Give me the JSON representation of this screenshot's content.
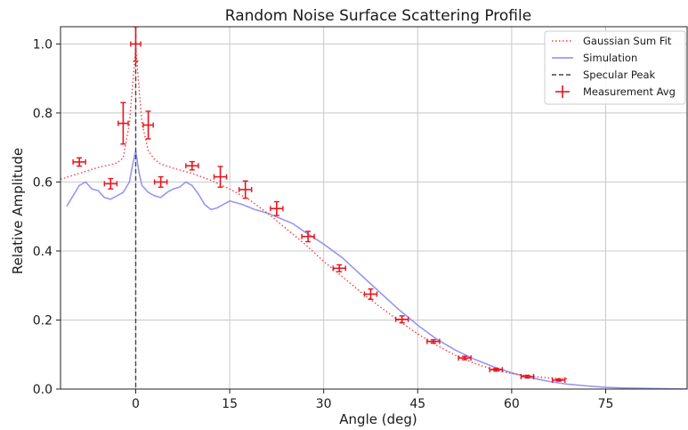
{
  "chart_data": {
    "type": "line",
    "title": "Random Noise Surface Scattering Profile",
    "xlabel": "Angle (deg)",
    "ylabel": "Relative Amplitude",
    "xlim": [
      -12,
      88
    ],
    "ylim": [
      0,
      1.05
    ],
    "xticks": [
      0,
      15,
      30,
      45,
      60,
      75
    ],
    "yticks": [
      0.0,
      0.2,
      0.4,
      0.6,
      0.8,
      1.0
    ],
    "xtick_labels": [
      "0",
      "15",
      "30",
      "45",
      "60",
      "75"
    ],
    "ytick_labels": [
      "0.0",
      "0.2",
      "0.4",
      "0.6",
      "0.8",
      "1.0"
    ],
    "grid": true,
    "legend_position": "top-right",
    "legend": [
      "Gaussian Sum Fit",
      "Simulation",
      "Specular Peak",
      "Measurement Avg"
    ],
    "colors": {
      "fit": "#ff3b3b",
      "simulation": "#8c8cf0",
      "specular": "#444444",
      "measurement": "#e8141e"
    },
    "specular_peak_x": 0,
    "series": [
      {
        "name": "Gaussian Sum Fit",
        "style": "dotted",
        "x": [
          -12,
          -9,
          -6,
          -4,
          -3,
          -2,
          -1,
          -0.5,
          0,
          0.5,
          1,
          2,
          3,
          4,
          6,
          9,
          12,
          15,
          18,
          21,
          24,
          27,
          30,
          33,
          36,
          39,
          42,
          45,
          48,
          51,
          54,
          57,
          60,
          63,
          66,
          69
        ],
        "y": [
          0.608,
          0.625,
          0.642,
          0.65,
          0.655,
          0.67,
          0.77,
          0.88,
          0.99,
          0.88,
          0.77,
          0.69,
          0.665,
          0.652,
          0.64,
          0.625,
          0.605,
          0.58,
          0.55,
          0.51,
          0.465,
          0.42,
          0.37,
          0.325,
          0.28,
          0.238,
          0.198,
          0.16,
          0.127,
          0.098,
          0.075,
          0.057,
          0.045,
          0.037,
          0.032,
          0.03
        ]
      },
      {
        "name": "Simulation",
        "style": "solid",
        "x": [
          -11,
          -10,
          -9,
          -8,
          -7,
          -6,
          -5,
          -4,
          -3,
          -2,
          -1,
          -0.5,
          0,
          0.5,
          1,
          2,
          3,
          4,
          5,
          6,
          7,
          8,
          9,
          10,
          11,
          12,
          13,
          14,
          15,
          17,
          19,
          21,
          23,
          25,
          27,
          30,
          33,
          36,
          39,
          42,
          45,
          48,
          51,
          54,
          57,
          60,
          63,
          66,
          69,
          72,
          75,
          78,
          81,
          84,
          88
        ],
        "y": [
          0.53,
          0.56,
          0.59,
          0.6,
          0.58,
          0.575,
          0.555,
          0.55,
          0.56,
          0.57,
          0.6,
          0.65,
          0.69,
          0.63,
          0.59,
          0.57,
          0.56,
          0.555,
          0.57,
          0.58,
          0.585,
          0.6,
          0.59,
          0.565,
          0.535,
          0.52,
          0.525,
          0.535,
          0.545,
          0.535,
          0.52,
          0.51,
          0.495,
          0.48,
          0.455,
          0.42,
          0.38,
          0.33,
          0.28,
          0.23,
          0.185,
          0.145,
          0.113,
          0.087,
          0.065,
          0.047,
          0.033,
          0.022,
          0.014,
          0.009,
          0.005,
          0.003,
          0.002,
          0.001,
          0.0
        ]
      },
      {
        "name": "Measurement Avg",
        "style": "errorbar",
        "x": [
          -9,
          -4,
          -2,
          0,
          2,
          4,
          9,
          13.5,
          17.5,
          22.5,
          27.5,
          32.5,
          37.5,
          42.5,
          47.5,
          52.5,
          57.5,
          62.5,
          67.5
        ],
        "y": [
          0.658,
          0.595,
          0.77,
          1.0,
          0.765,
          0.6,
          0.647,
          0.615,
          0.578,
          0.523,
          0.442,
          0.35,
          0.275,
          0.202,
          0.138,
          0.09,
          0.056,
          0.036,
          0.026
        ],
        "xerr": [
          1.0,
          1.0,
          0.8,
          0.8,
          0.8,
          1.0,
          1.0,
          1.0,
          1.0,
          1.0,
          1.0,
          1.0,
          1.0,
          1.0,
          1.0,
          1.0,
          1.0,
          1.0,
          1.0
        ],
        "yerr": [
          0.012,
          0.015,
          0.06,
          0.05,
          0.04,
          0.015,
          0.012,
          0.03,
          0.025,
          0.02,
          0.015,
          0.01,
          0.015,
          0.01,
          0.005,
          0.005,
          0.004,
          0.004,
          0.003
        ]
      }
    ]
  }
}
